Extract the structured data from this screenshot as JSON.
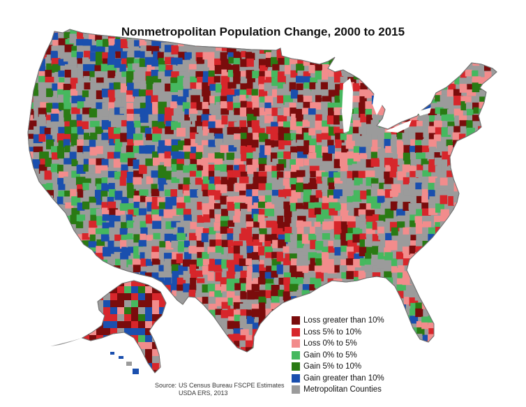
{
  "title": "Nonmetropolitan Population Change, 2000 to 2015",
  "legend": {
    "items": [
      {
        "label": "Loss greater than 10%",
        "color": "#7a0c0c"
      },
      {
        "label": "Loss 5% to 10%",
        "color": "#d7262b"
      },
      {
        "label": "Loss 0% to 5%",
        "color": "#f28c8c"
      },
      {
        "label": "Gain 0% to 5%",
        "color": "#46b85f"
      },
      {
        "label": "Gain 5% to 10%",
        "color": "#2a7a14"
      },
      {
        "label": "Gain greater than 10%",
        "color": "#1a4fae"
      },
      {
        "label": "Metropolitan Counties",
        "color": "#9b9b9b"
      }
    ]
  },
  "source": {
    "prefix": "Source:",
    "line1": "US Census Bureau FSCPE Estimates",
    "line2": "USDA ERS, 2013"
  },
  "map": {
    "base_color": "#9b9b9b",
    "border_color": "#7d7d7d",
    "icons": [
      "conus-outline",
      "alaska-outline",
      "hawaii-islands"
    ]
  }
}
